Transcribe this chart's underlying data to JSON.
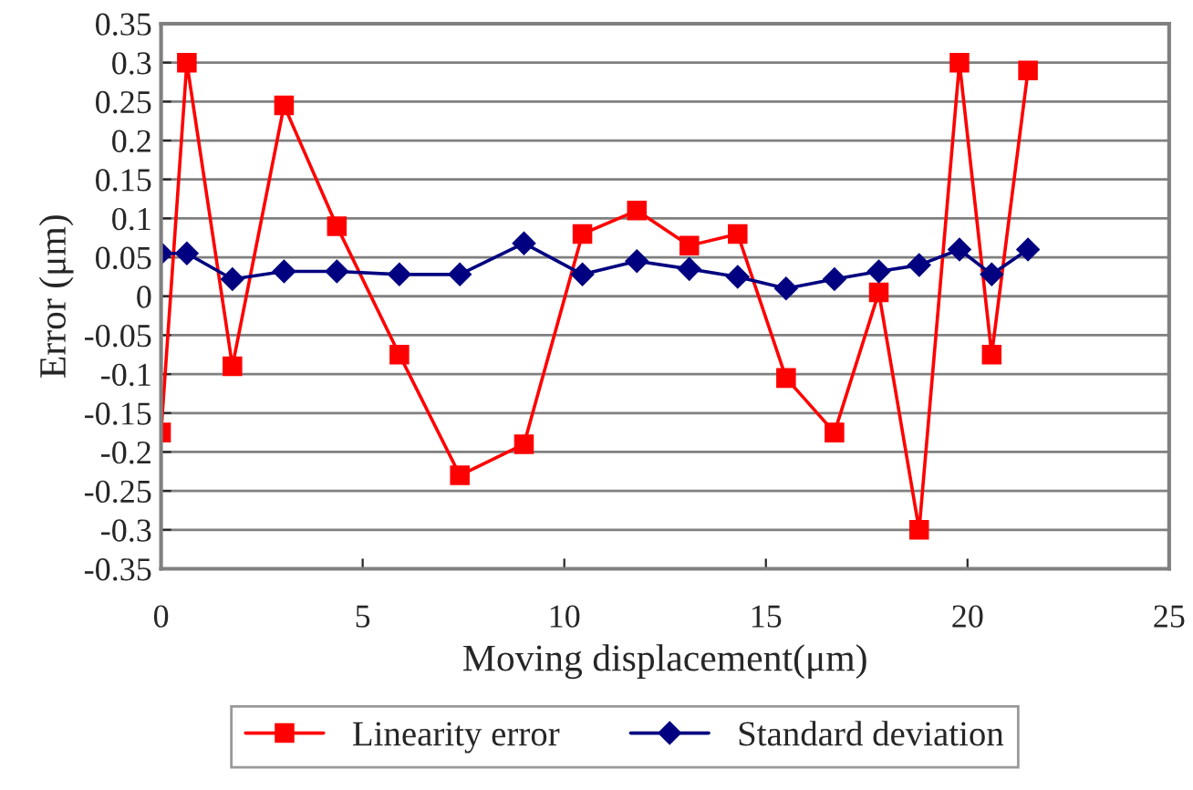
{
  "chart_data": {
    "type": "line",
    "xlabel": "Moving displacement(μm)",
    "ylabel": "Error (μm)",
    "x": [
      0,
      0.64,
      1.77,
      3.05,
      4.36,
      5.91,
      7.41,
      9.0,
      10.45,
      11.8,
      13.1,
      14.3,
      15.5,
      16.7,
      17.8,
      18.8,
      19.8,
      20.6,
      21.5
    ],
    "series": [
      {
        "name": "Linearity error",
        "color": "#ff0000",
        "marker": "square",
        "values": [
          -0.175,
          0.3,
          -0.09,
          0.245,
          0.09,
          -0.075,
          -0.23,
          -0.19,
          0.08,
          0.11,
          0.065,
          0.08,
          -0.105,
          -0.175,
          0.005,
          -0.3,
          0.3,
          -0.075,
          0.29
        ]
      },
      {
        "name": "Standard deviation",
        "color": "#000080",
        "marker": "diamond",
        "values": [
          0.055,
          0.055,
          0.022,
          0.032,
          0.032,
          0.028,
          0.028,
          0.068,
          0.028,
          0.045,
          0.035,
          0.025,
          0.01,
          0.022,
          0.032,
          0.04,
          0.06,
          0.028,
          0.06
        ]
      }
    ],
    "xlim": [
      0,
      25
    ],
    "xticks": [
      0,
      5,
      10,
      15,
      20,
      25
    ],
    "ylim": [
      -0.35,
      0.35
    ],
    "yticks": [
      -0.35,
      -0.3,
      -0.25,
      -0.2,
      -0.15,
      -0.1,
      -0.05,
      0,
      0.05,
      0.1,
      0.15,
      0.2,
      0.25,
      0.3,
      0.35
    ],
    "grid": "y",
    "legend": "bottom",
    "line_style": "solid"
  }
}
